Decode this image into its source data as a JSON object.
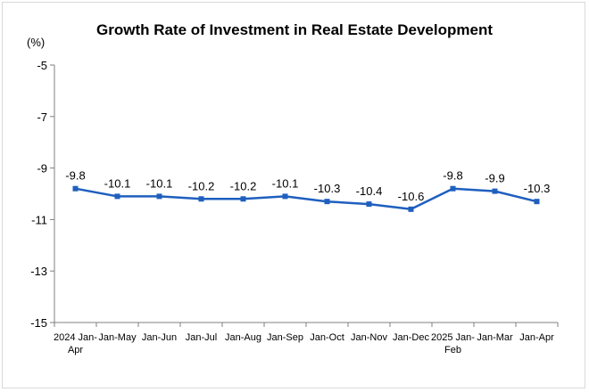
{
  "chart_data": {
    "type": "line",
    "title": "Growth Rate of Investment in Real Estate Development",
    "unit": "(%)",
    "categories": [
      "2024 Jan-Apr",
      "Jan-May",
      "Jan-Jun",
      "Jan-Jul",
      "Jan-Aug",
      "Jan-Sep",
      "Jan-Oct",
      "Jan-Nov",
      "Jan-Dec",
      "2025 Jan-Feb",
      "Jan-Mar",
      "Jan-Apr"
    ],
    "category_lines": [
      [
        "2024 Jan-",
        "Apr"
      ],
      [
        "Jan-May"
      ],
      [
        "Jan-Jun"
      ],
      [
        "Jan-Jul"
      ],
      [
        "Jan-Aug"
      ],
      [
        "Jan-Sep"
      ],
      [
        "Jan-Oct"
      ],
      [
        "Jan-Nov"
      ],
      [
        "Jan-Dec"
      ],
      [
        "2025 Jan-",
        "Feb"
      ],
      [
        "Jan-Mar"
      ],
      [
        "Jan-Apr"
      ]
    ],
    "values": [
      -9.8,
      -10.1,
      -10.1,
      -10.2,
      -10.2,
      -10.1,
      -10.3,
      -10.4,
      -10.6,
      -9.8,
      -9.9,
      -10.3
    ],
    "data_labels": [
      "-9.8",
      "-10.1",
      "-10.1",
      "-10.2",
      "-10.2",
      "-10.1",
      "-10.3",
      "-10.4",
      "-10.6",
      "-9.8",
      "-9.9",
      "-10.3"
    ],
    "ylim": [
      -15,
      -5
    ],
    "yticks": [
      -5,
      -7,
      -9,
      -11,
      -13,
      -15
    ],
    "ytick_labels": [
      "-5",
      "-7",
      "-9",
      "-11",
      "-13",
      "-15"
    ],
    "xlabel": "",
    "ylabel": "",
    "grid": false,
    "legend": "none",
    "line_color": "#1f5fbf",
    "axis_color": "#7f7f7f"
  }
}
